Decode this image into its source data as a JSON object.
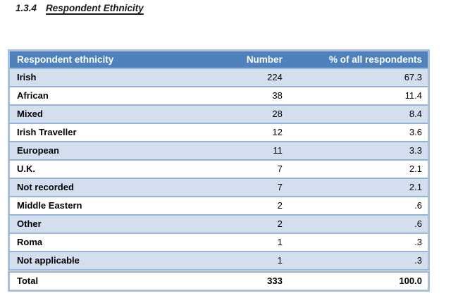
{
  "heading": {
    "number": "1.3.4",
    "title": "Respondent Ethnicity"
  },
  "table": {
    "columns": [
      "Respondent ethnicity",
      "Number",
      "% of all respondents"
    ],
    "rows": [
      {
        "ethnicity": "Irish",
        "number": "224",
        "percent": "67.3"
      },
      {
        "ethnicity": "African",
        "number": "38",
        "percent": "11.4"
      },
      {
        "ethnicity": "Mixed",
        "number": "28",
        "percent": "8.4"
      },
      {
        "ethnicity": "Irish Traveller",
        "number": "12",
        "percent": "3.6"
      },
      {
        "ethnicity": "European",
        "number": "11",
        "percent": "3.3"
      },
      {
        "ethnicity": "U.K.",
        "number": "7",
        "percent": "2.1"
      },
      {
        "ethnicity": "Not recorded",
        "number": "7",
        "percent": "2.1"
      },
      {
        "ethnicity": "Middle Eastern",
        "number": "2",
        "percent": ".6"
      },
      {
        "ethnicity": "Other",
        "number": "2",
        "percent": ".6"
      },
      {
        "ethnicity": "Roma",
        "number": "1",
        "percent": ".3"
      },
      {
        "ethnicity": "Not applicable",
        "number": "1",
        "percent": ".3"
      }
    ],
    "total": {
      "label": "Total",
      "number": "333",
      "percent": "100.0"
    }
  },
  "colors": {
    "header_bg": "#4F81BD",
    "header_text": "#FFFFFF",
    "band_bg": "#D3DFEE",
    "row_border": "#95B3D7",
    "outer_border": "#A9C0DD",
    "body_text": "#000000"
  }
}
